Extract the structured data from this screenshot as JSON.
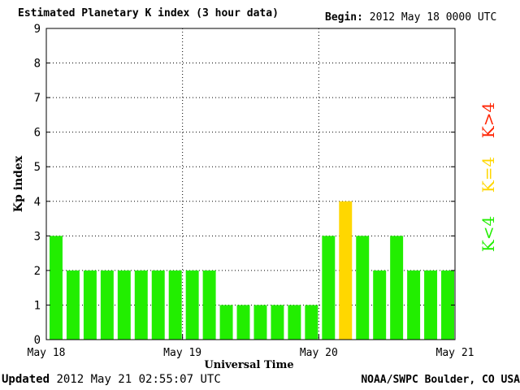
{
  "header": {
    "title": "Estimated Planetary K index (3 hour data)",
    "begin_label": "Begin:",
    "begin_value": "2012 May 18 0000 UTC"
  },
  "footer": {
    "updated_label": "Updated",
    "updated_value": "2012 May 21 02:55:07 UTC",
    "source": "NOAA/SWPC Boulder, CO USA"
  },
  "chart_data": {
    "type": "bar",
    "title": "Estimated Planetary K index (3 hour data)",
    "xlabel": "Universal Time",
    "ylabel": "Kp index",
    "ylim": [
      0,
      9
    ],
    "yticks": [
      0,
      1,
      2,
      3,
      4,
      5,
      6,
      7,
      8,
      9
    ],
    "xtick_labels": [
      "May 18",
      "May 19",
      "May 20",
      "May 21"
    ],
    "grid": true,
    "values": [
      3,
      2,
      2,
      2,
      2,
      2,
      2,
      2,
      2,
      2,
      1,
      1,
      1,
      1,
      1,
      1,
      3,
      4,
      3,
      2,
      3,
      2,
      2,
      2
    ],
    "colors": {
      "below4": "#22ee00",
      "equal4": "#ffd700",
      "above4": "#ff2200"
    },
    "legend": [
      {
        "label": "K<4",
        "color": "#22ee00"
      },
      {
        "label": "K=4",
        "color": "#ffd700"
      },
      {
        "label": "K>4",
        "color": "#ff2200"
      }
    ],
    "legend_position": "right"
  }
}
